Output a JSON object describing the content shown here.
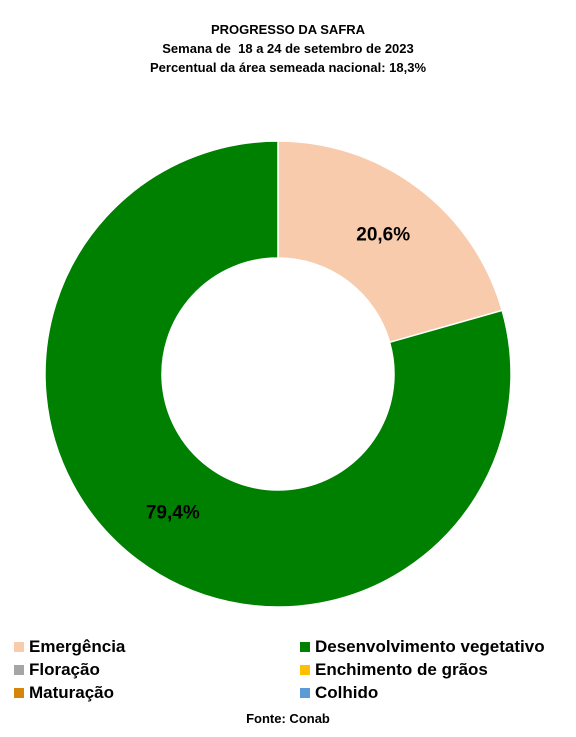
{
  "chart_data": {
    "type": "pie",
    "title": "PROGRESSO DA SAFRA",
    "subtitle": "Semana de  18 a 24 de setembro de 2023",
    "subtitle2": "Percentual da área semeada nacional: 18,3%",
    "slices": [
      {
        "name": "Emergência",
        "value": 20.6,
        "label": "20,6%",
        "color": "#f8cbad"
      },
      {
        "name": "Desenvolvimento vegetativo",
        "value": 79.4,
        "label": "79,4%",
        "color": "#008000"
      }
    ],
    "legend": [
      {
        "label": "Emergência",
        "color": "#f8cbad"
      },
      {
        "label": "Desenvolvimento vegetativo",
        "color": "#008000"
      },
      {
        "label": "Floração",
        "color": "#a5a5a5"
      },
      {
        "label": "Enchimento de grãos",
        "color": "#ffc000"
      },
      {
        "label": "Maturação",
        "color": "#d4860b"
      },
      {
        "label": "Colhido",
        "color": "#5b9bd5"
      }
    ],
    "legend_position": "bottom",
    "source": "Fonte: Conab"
  }
}
